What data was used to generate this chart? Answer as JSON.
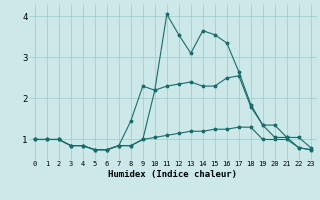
{
  "xlabel": "Humidex (Indice chaleur)",
  "background_color": "#cce8e8",
  "line_color": "#1a6b6b",
  "grid_color": "#99cccc",
  "xlim": [
    -0.5,
    23.5
  ],
  "ylim": [
    0.5,
    4.3
  ],
  "xticks": [
    0,
    1,
    2,
    3,
    4,
    5,
    6,
    7,
    8,
    9,
    10,
    11,
    12,
    13,
    14,
    15,
    16,
    17,
    18,
    19,
    20,
    21,
    22,
    23
  ],
  "yticks": [
    1,
    2,
    3,
    4
  ],
  "line1_x": [
    0,
    1,
    2,
    3,
    4,
    5,
    6,
    7,
    8,
    9,
    10,
    11,
    12,
    13,
    14,
    15,
    16,
    17,
    18,
    19,
    20,
    21,
    22,
    23
  ],
  "line1_y": [
    1.0,
    1.0,
    1.0,
    0.85,
    0.85,
    0.75,
    0.75,
    0.85,
    0.85,
    1.0,
    1.05,
    1.1,
    1.15,
    1.2,
    1.2,
    1.25,
    1.25,
    1.3,
    1.3,
    1.0,
    1.0,
    1.0,
    0.8,
    0.75
  ],
  "line2_x": [
    0,
    1,
    2,
    3,
    4,
    5,
    6,
    7,
    8,
    9,
    10,
    11,
    12,
    13,
    14,
    15,
    16,
    17,
    18,
    19,
    20,
    21,
    22,
    23
  ],
  "line2_y": [
    1.0,
    1.0,
    1.0,
    0.85,
    0.85,
    0.75,
    0.75,
    0.85,
    1.45,
    2.3,
    2.2,
    2.3,
    2.35,
    2.4,
    2.3,
    2.3,
    2.5,
    2.55,
    1.8,
    1.35,
    1.35,
    1.05,
    1.05,
    0.8
  ],
  "line3_x": [
    0,
    1,
    2,
    3,
    4,
    5,
    6,
    7,
    8,
    9,
    10,
    11,
    12,
    13,
    14,
    15,
    16,
    17,
    18,
    19,
    20,
    21,
    22,
    23
  ],
  "line3_y": [
    1.0,
    1.0,
    1.0,
    0.85,
    0.85,
    0.75,
    0.75,
    0.85,
    0.85,
    1.0,
    2.2,
    4.05,
    3.55,
    3.1,
    3.65,
    3.55,
    3.35,
    2.65,
    1.85,
    1.35,
    1.05,
    1.05,
    0.8,
    0.75
  ]
}
